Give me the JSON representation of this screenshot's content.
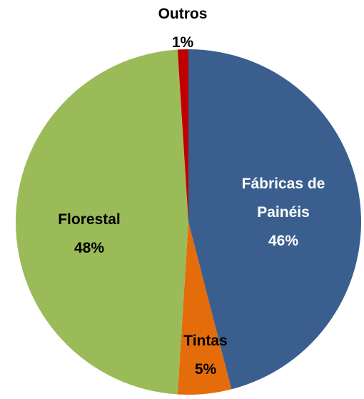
{
  "chart_data": {
    "type": "pie",
    "categories": [
      "Fábricas de Painéis",
      "Tintas",
      "Florestal",
      "Outros"
    ],
    "values": [
      46,
      5,
      48,
      1
    ],
    "value_labels": [
      "46%",
      "5%",
      "48%",
      "1%"
    ],
    "colors": [
      "#3a5f8f",
      "#e46c0a",
      "#9bbb59",
      "#c00000"
    ]
  }
}
